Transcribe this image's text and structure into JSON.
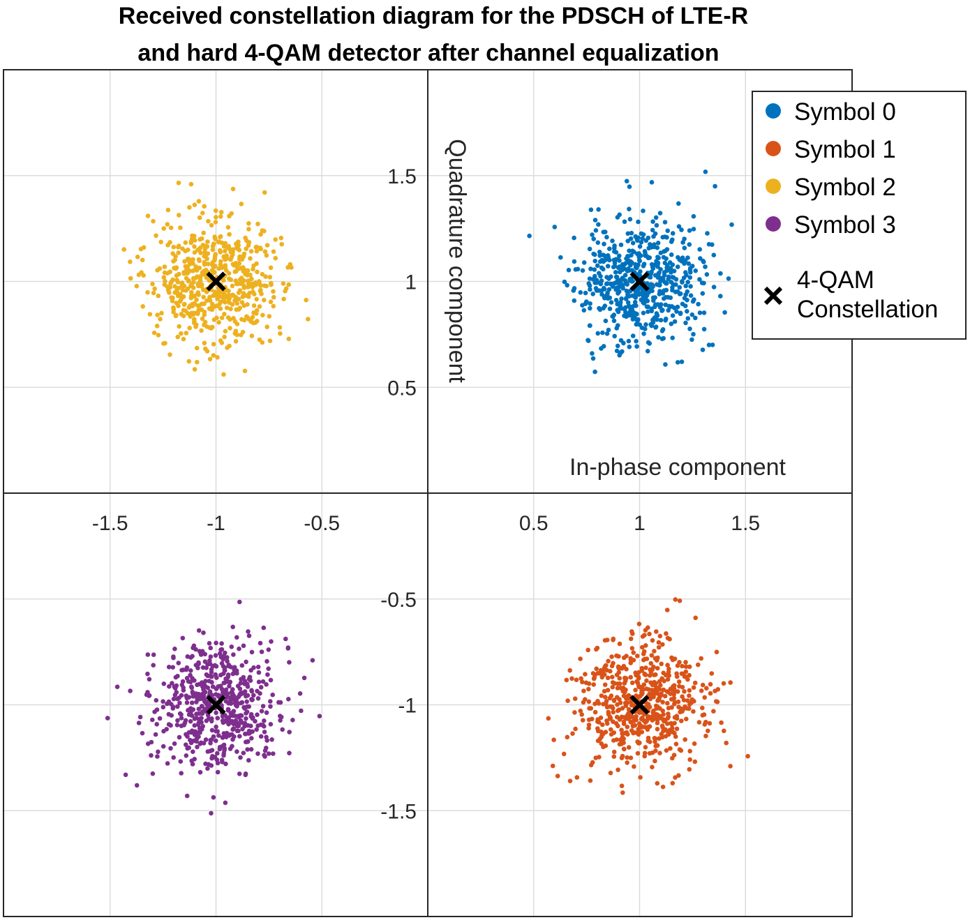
{
  "chart_data": {
    "type": "scatter",
    "title": [
      "Received constellation diagram for the PDSCH of LTE-R",
      "and hard 4-QAM detector after channel equalization"
    ],
    "xlabel": "In-phase component",
    "ylabel": "Quadrature component",
    "xlim": [
      -2,
      2
    ],
    "ylim": [
      -2,
      2
    ],
    "grid": true,
    "axes_location": "origin",
    "xticks": [
      -1.5,
      -1,
      -0.5,
      0.5,
      1,
      1.5
    ],
    "xtick_labels": [
      "-1.5",
      "-1",
      "-0.5",
      "0.5",
      "1",
      "1.5"
    ],
    "yticks": [
      -1.5,
      -1,
      -0.5,
      0.5,
      1,
      1.5
    ],
    "ytick_labels": [
      "-1.5",
      "-1",
      "-0.5",
      "0.5",
      "1",
      "1.5"
    ],
    "legend_position": "top-right",
    "series": [
      {
        "name": "Symbol 0",
        "color": "#0072BD",
        "center": [
          1,
          1
        ],
        "std": 0.15,
        "num_points": 600,
        "seed": 11
      },
      {
        "name": "Symbol 1",
        "color": "#D95319",
        "center": [
          1,
          -1
        ],
        "std": 0.15,
        "num_points": 600,
        "seed": 23
      },
      {
        "name": "Symbol 2",
        "color": "#EDB120",
        "center": [
          -1,
          1
        ],
        "std": 0.15,
        "num_points": 600,
        "seed": 37
      },
      {
        "name": "Symbol 3",
        "color": "#7E2F8E",
        "center": [
          -1,
          -1
        ],
        "std": 0.15,
        "num_points": 600,
        "seed": 53
      }
    ],
    "constellation": {
      "name": "4-QAM Constellation",
      "name_lines": [
        "4-QAM",
        "Constellation"
      ],
      "marker": "x",
      "color": "#000000",
      "points": [
        [
          1,
          1
        ],
        [
          1,
          -1
        ],
        [
          -1,
          1
        ],
        [
          -1,
          -1
        ]
      ]
    }
  }
}
